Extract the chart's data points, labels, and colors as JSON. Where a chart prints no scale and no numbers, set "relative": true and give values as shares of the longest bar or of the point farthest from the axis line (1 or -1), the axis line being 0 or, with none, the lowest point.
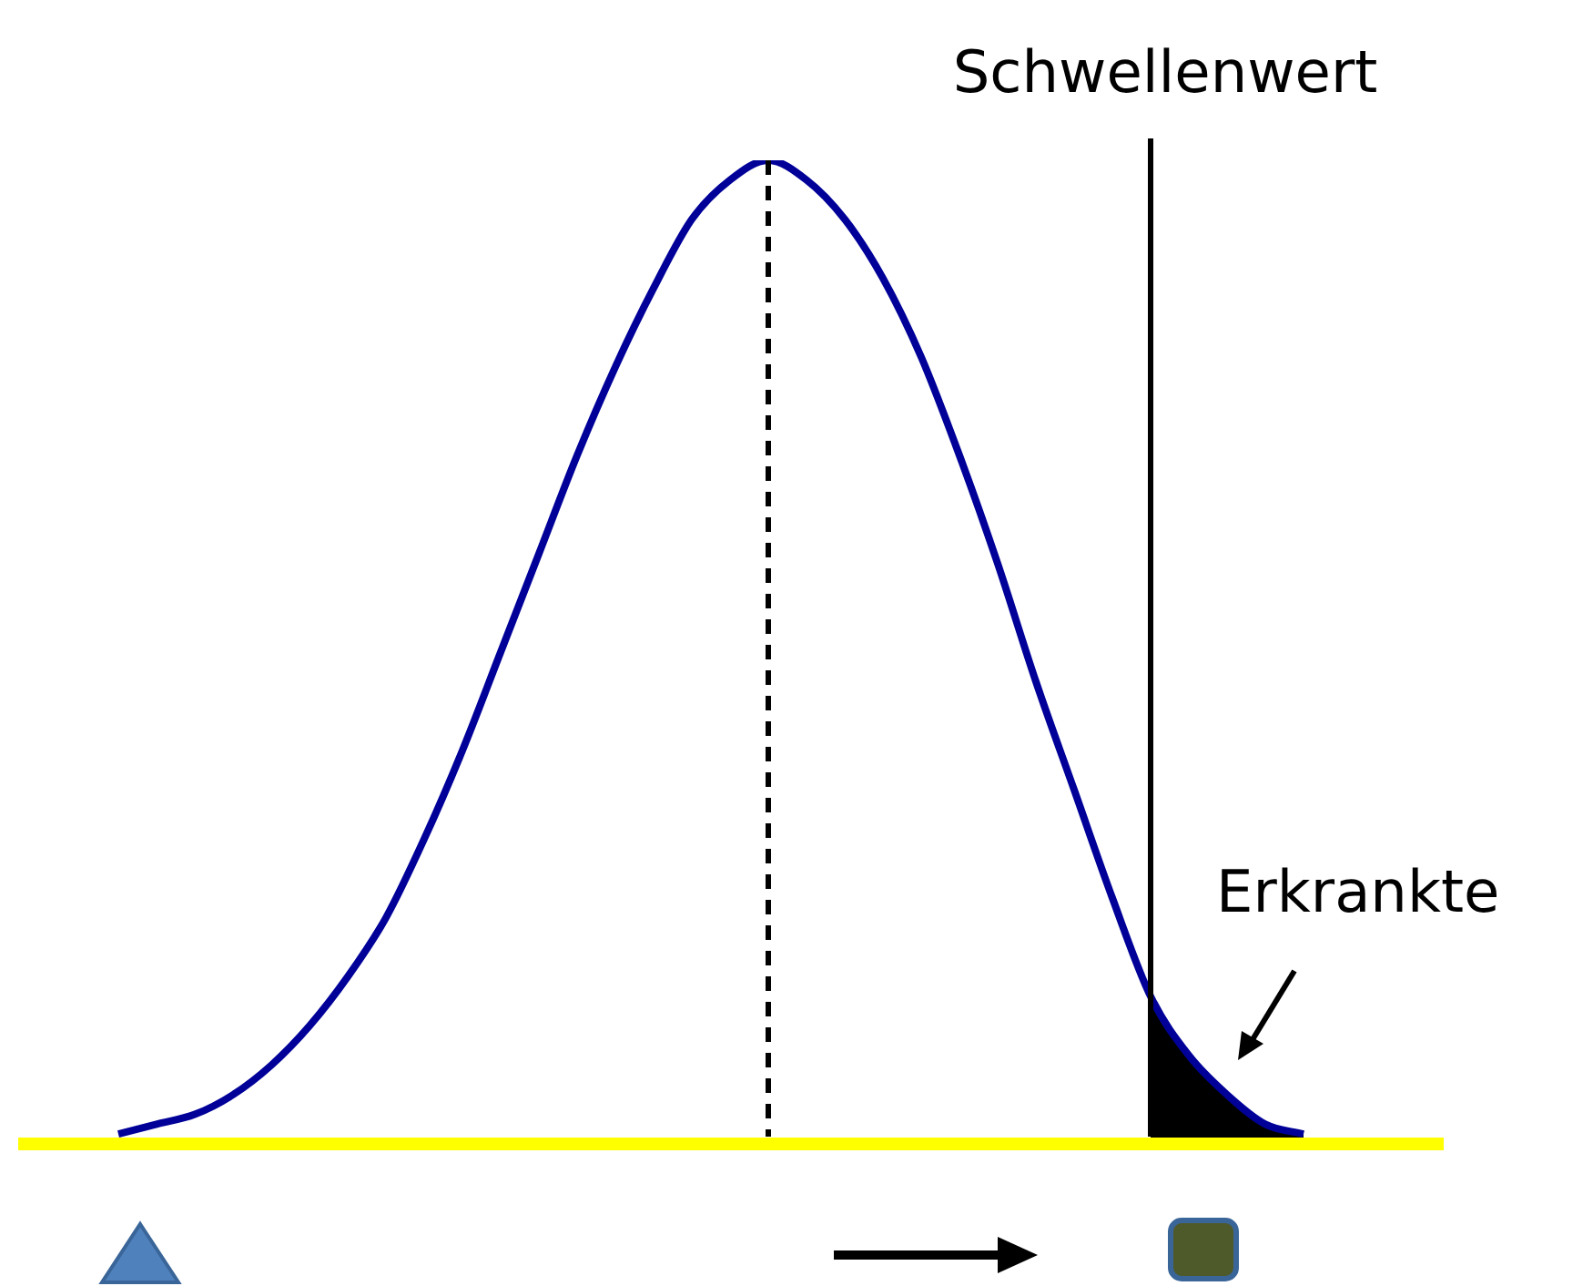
{
  "chart_data": {
    "type": "line",
    "relative": true,
    "legend": false,
    "grid": false,
    "tick_labels": false,
    "marker": "none",
    "categories": [
      null,
      null,
      null,
      null,
      null,
      null,
      null,
      null,
      null,
      null,
      null,
      null,
      null,
      null,
      null,
      null,
      null,
      null,
      null,
      null,
      null,
      null,
      null,
      null,
      null,
      null,
      null,
      null,
      null,
      null,
      null,
      null
    ],
    "series": [
      {
        "color": "#000099",
        "values": [
          0.01,
          0.02,
          0.03,
          0.05,
          0.08,
          0.12,
          0.17,
          0.23,
          0.31,
          0.4,
          0.5,
          0.6,
          0.7,
          0.79,
          0.87,
          0.94,
          0.98,
          1,
          0.98,
          0.94,
          0.88,
          0.8,
          0.7,
          0.59,
          0.47,
          0.36,
          0.25,
          0.15,
          0.09,
          0.05,
          0.02,
          0.01
        ]
      },
      {
        "type": "area",
        "color": "#000000",
        "values": [
          null,
          null,
          null,
          null,
          null,
          null,
          null,
          null,
          null,
          null,
          null,
          null,
          null,
          null,
          null,
          null,
          null,
          null,
          null,
          null,
          null,
          null,
          null,
          null,
          null,
          null,
          null,
          0.15,
          0.09,
          0.05,
          0.02,
          0.01
        ]
      }
    ],
    "annotations": [
      "Schwellenwert",
      "Erkrankte"
    ]
  }
}
